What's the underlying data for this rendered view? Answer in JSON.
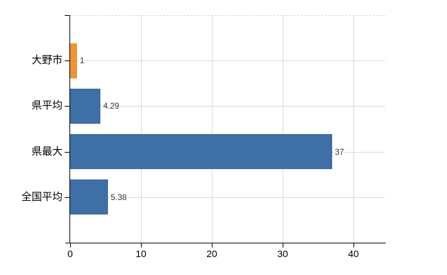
{
  "chart_data": {
    "type": "bar",
    "orientation": "horizontal",
    "title": "",
    "xlabel": "",
    "ylabel": "",
    "categories": [
      "大野市",
      "県平均",
      "県最大",
      "全国平均"
    ],
    "values": [
      1,
      4.29,
      37,
      5.38
    ],
    "value_labels": [
      "1",
      "4.29",
      "37",
      "5.38"
    ],
    "bar_colors": [
      "#ef9334",
      "#3e6fa7",
      "#3e6fa7",
      "#3e6fa7"
    ],
    "x_ticks": [
      0,
      10,
      20,
      30,
      40
    ],
    "x_tick_labels": [
      "0",
      "10",
      "20",
      "30",
      "40"
    ],
    "xlim": [
      0,
      44.5
    ],
    "grid": true,
    "legend": "none",
    "colors": {
      "bar_blue": "#3e6fa7",
      "bar_orange": "#ef9334",
      "gridline": "#d9d9d9",
      "axis": "#000000",
      "value_label": "#333333",
      "tick_label": "#000000",
      "background": "#ffffff"
    }
  }
}
